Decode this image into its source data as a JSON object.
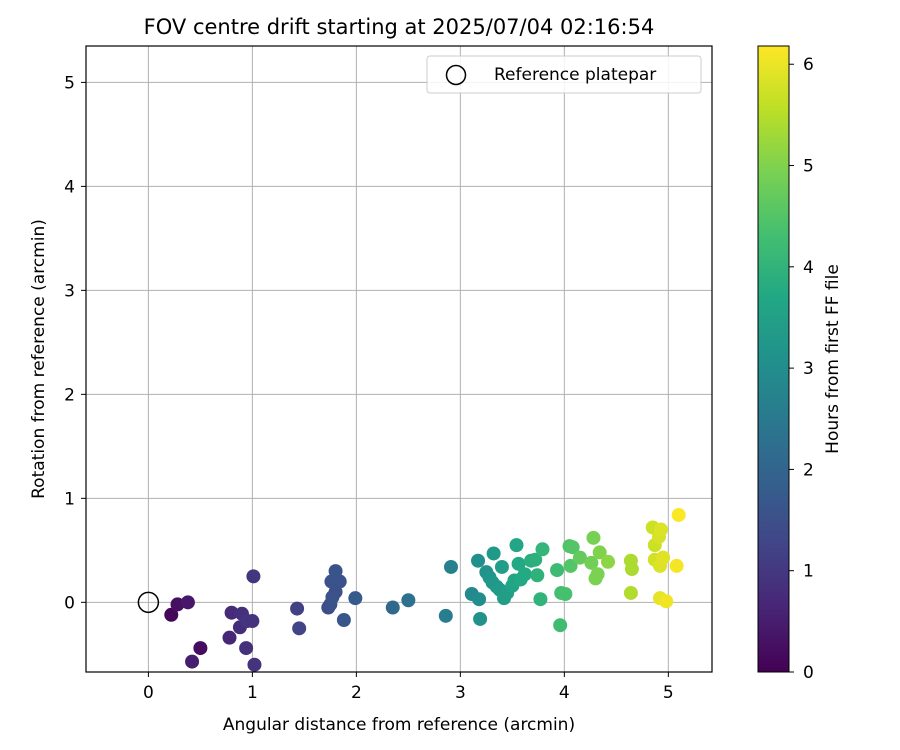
{
  "chart_data": {
    "type": "scatter",
    "title": "FOV centre drift starting at 2025/07/04 02:16:54",
    "xlabel": "Angular distance from reference (arcmin)",
    "ylabel": "Rotation from reference (arcmin)",
    "xlim": [
      -0.6,
      5.42
    ],
    "ylim": [
      -0.67,
      5.35
    ],
    "xticks": [
      0,
      1,
      2,
      3,
      4,
      5
    ],
    "yticks": [
      0,
      1,
      2,
      3,
      4,
      5
    ],
    "grid": true,
    "legend": {
      "location": "top-right",
      "entries": [
        "Reference platepar"
      ]
    },
    "reference_point": {
      "x": 0,
      "y": 0,
      "label": "Reference platepar"
    },
    "colorbar": {
      "label": "Hours from first FF file",
      "colormap": "viridis",
      "min": 0,
      "max": 6.18,
      "ticks": [
        0,
        1,
        2,
        3,
        4,
        5,
        6
      ]
    },
    "points": [
      {
        "x": 0.22,
        "y": -0.12,
        "c": 0.1
      },
      {
        "x": 0.28,
        "y": -0.02,
        "c": 0.25
      },
      {
        "x": 0.38,
        "y": 0.0,
        "c": 0.4
      },
      {
        "x": 0.5,
        "y": -0.44,
        "c": 0.2
      },
      {
        "x": 0.42,
        "y": -0.57,
        "c": 0.5
      },
      {
        "x": 0.8,
        "y": -0.1,
        "c": 0.75
      },
      {
        "x": 0.78,
        "y": -0.34,
        "c": 0.65
      },
      {
        "x": 0.88,
        "y": -0.24,
        "c": 0.8
      },
      {
        "x": 0.9,
        "y": -0.11,
        "c": 0.85
      },
      {
        "x": 0.95,
        "y": -0.18,
        "c": 0.95
      },
      {
        "x": 1.0,
        "y": -0.18,
        "c": 0.9
      },
      {
        "x": 0.94,
        "y": -0.44,
        "c": 0.85
      },
      {
        "x": 1.02,
        "y": -0.6,
        "c": 0.9
      },
      {
        "x": 1.01,
        "y": 0.25,
        "c": 0.95
      },
      {
        "x": 1.43,
        "y": -0.06,
        "c": 1.2
      },
      {
        "x": 1.45,
        "y": -0.25,
        "c": 1.25
      },
      {
        "x": 1.73,
        "y": -0.05,
        "c": 1.45
      },
      {
        "x": 1.75,
        "y": -0.02,
        "c": 1.5
      },
      {
        "x": 1.77,
        "y": 0.05,
        "c": 1.55
      },
      {
        "x": 1.8,
        "y": 0.1,
        "c": 1.5
      },
      {
        "x": 1.76,
        "y": 0.2,
        "c": 1.55
      },
      {
        "x": 1.8,
        "y": 0.3,
        "c": 1.6
      },
      {
        "x": 1.84,
        "y": 0.2,
        "c": 1.6
      },
      {
        "x": 1.88,
        "y": -0.17,
        "c": 1.65
      },
      {
        "x": 1.99,
        "y": 0.04,
        "c": 1.75
      },
      {
        "x": 2.35,
        "y": -0.05,
        "c": 2.1
      },
      {
        "x": 2.5,
        "y": 0.02,
        "c": 2.3
      },
      {
        "x": 2.86,
        "y": -0.13,
        "c": 2.6
      },
      {
        "x": 2.91,
        "y": 0.34,
        "c": 2.7
      },
      {
        "x": 3.11,
        "y": 0.08,
        "c": 2.9
      },
      {
        "x": 3.18,
        "y": 0.03,
        "c": 3.0
      },
      {
        "x": 3.17,
        "y": 0.4,
        "c": 3.05
      },
      {
        "x": 3.19,
        "y": -0.16,
        "c": 3.1
      },
      {
        "x": 3.25,
        "y": 0.29,
        "c": 3.15
      },
      {
        "x": 3.28,
        "y": 0.24,
        "c": 3.2
      },
      {
        "x": 3.31,
        "y": 0.19,
        "c": 3.25
      },
      {
        "x": 3.32,
        "y": 0.47,
        "c": 3.3
      },
      {
        "x": 3.35,
        "y": 0.15,
        "c": 3.3
      },
      {
        "x": 3.38,
        "y": 0.12,
        "c": 3.35
      },
      {
        "x": 3.4,
        "y": 0.34,
        "c": 3.4
      },
      {
        "x": 3.42,
        "y": 0.04,
        "c": 3.45
      },
      {
        "x": 3.45,
        "y": 0.09,
        "c": 3.45
      },
      {
        "x": 3.5,
        "y": 0.16,
        "c": 3.55
      },
      {
        "x": 3.52,
        "y": 0.21,
        "c": 3.6
      },
      {
        "x": 3.54,
        "y": 0.55,
        "c": 3.65
      },
      {
        "x": 3.56,
        "y": 0.37,
        "c": 3.7
      },
      {
        "x": 3.58,
        "y": 0.22,
        "c": 3.7
      },
      {
        "x": 3.62,
        "y": 0.27,
        "c": 3.75
      },
      {
        "x": 3.68,
        "y": 0.4,
        "c": 3.85
      },
      {
        "x": 3.72,
        "y": 0.41,
        "c": 3.9
      },
      {
        "x": 3.74,
        "y": 0.26,
        "c": 3.95
      },
      {
        "x": 3.77,
        "y": 0.03,
        "c": 4.0
      },
      {
        "x": 3.79,
        "y": 0.51,
        "c": 4.05
      },
      {
        "x": 3.93,
        "y": 0.31,
        "c": 4.2
      },
      {
        "x": 3.96,
        "y": -0.22,
        "c": 4.25
      },
      {
        "x": 3.97,
        "y": 0.09,
        "c": 4.3
      },
      {
        "x": 4.01,
        "y": 0.08,
        "c": 4.35
      },
      {
        "x": 4.05,
        "y": 0.54,
        "c": 4.45
      },
      {
        "x": 4.08,
        "y": 0.53,
        "c": 4.5
      },
      {
        "x": 4.06,
        "y": 0.35,
        "c": 4.5
      },
      {
        "x": 4.15,
        "y": 0.43,
        "c": 4.7
      },
      {
        "x": 4.26,
        "y": 0.38,
        "c": 4.85
      },
      {
        "x": 4.28,
        "y": 0.62,
        "c": 4.9
      },
      {
        "x": 4.3,
        "y": 0.23,
        "c": 4.95
      },
      {
        "x": 4.32,
        "y": 0.27,
        "c": 4.95
      },
      {
        "x": 4.34,
        "y": 0.48,
        "c": 5.0
      },
      {
        "x": 4.42,
        "y": 0.39,
        "c": 5.1
      },
      {
        "x": 4.64,
        "y": 0.4,
        "c": 5.4
      },
      {
        "x": 4.65,
        "y": 0.32,
        "c": 5.4
      },
      {
        "x": 4.64,
        "y": 0.09,
        "c": 5.45
      },
      {
        "x": 4.85,
        "y": 0.72,
        "c": 5.7
      },
      {
        "x": 4.87,
        "y": 0.55,
        "c": 5.7
      },
      {
        "x": 4.87,
        "y": 0.41,
        "c": 5.75
      },
      {
        "x": 4.91,
        "y": 0.63,
        "c": 5.8
      },
      {
        "x": 4.93,
        "y": 0.7,
        "c": 5.85
      },
      {
        "x": 4.92,
        "y": 0.35,
        "c": 5.85
      },
      {
        "x": 4.95,
        "y": 0.43,
        "c": 5.9
      },
      {
        "x": 4.92,
        "y": 0.04,
        "c": 5.95
      },
      {
        "x": 4.98,
        "y": 0.01,
        "c": 6.05
      },
      {
        "x": 5.08,
        "y": 0.35,
        "c": 6.1
      },
      {
        "x": 5.1,
        "y": 0.84,
        "c": 6.15
      }
    ]
  }
}
